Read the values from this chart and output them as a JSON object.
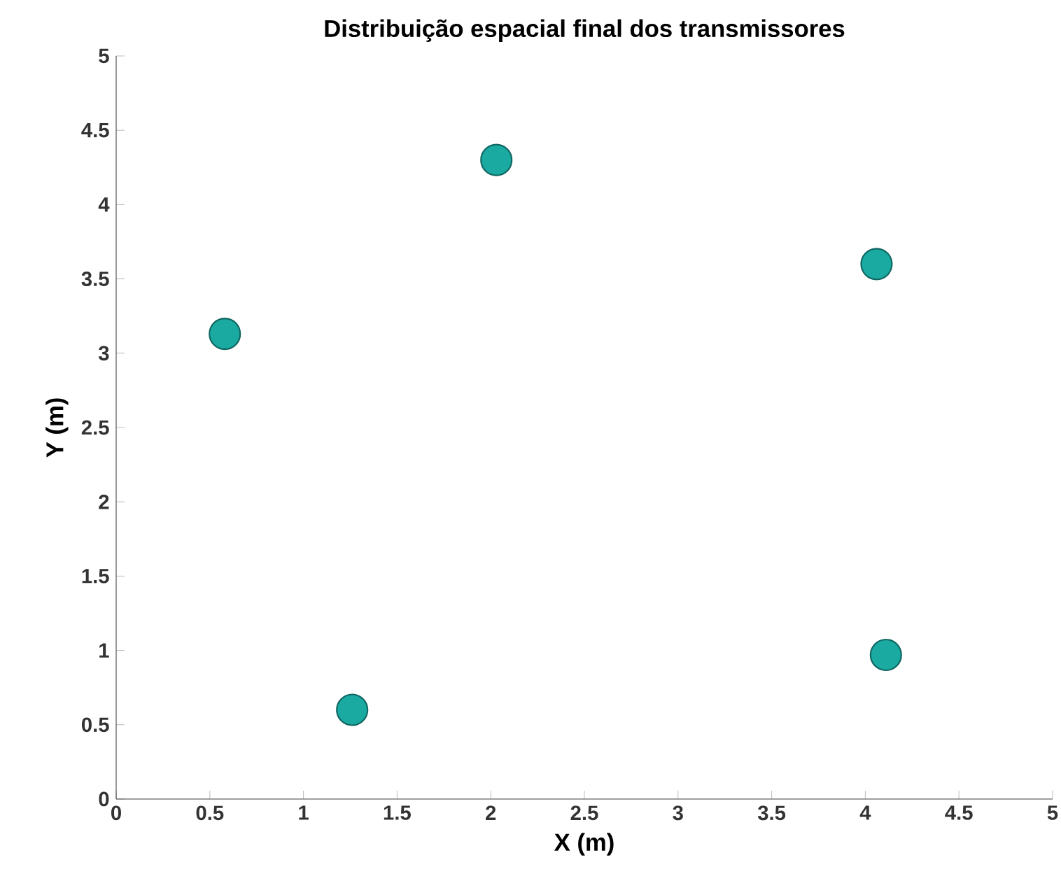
{
  "chart_data": {
    "type": "scatter",
    "title": "Distribuição espacial final dos transmissores",
    "xlabel": "X (m)",
    "ylabel": "Y (m)",
    "x": [
      0.58,
      1.26,
      2.03,
      4.06,
      4.11
    ],
    "series": [
      {
        "color": "#1aaaa2",
        "values": [
          3.13,
          0.6,
          4.3,
          3.6,
          0.97
        ]
      }
    ],
    "xlim": [
      0,
      5
    ],
    "ylim": [
      0,
      5
    ],
    "xticks": [
      0,
      0.5,
      1,
      1.5,
      2,
      2.5,
      3,
      3.5,
      4,
      4.5,
      5
    ],
    "yticks": [
      0,
      0.5,
      1,
      1.5,
      2,
      2.5,
      3,
      3.5,
      4,
      4.5,
      5
    ],
    "grid": false,
    "marker": "circle"
  }
}
